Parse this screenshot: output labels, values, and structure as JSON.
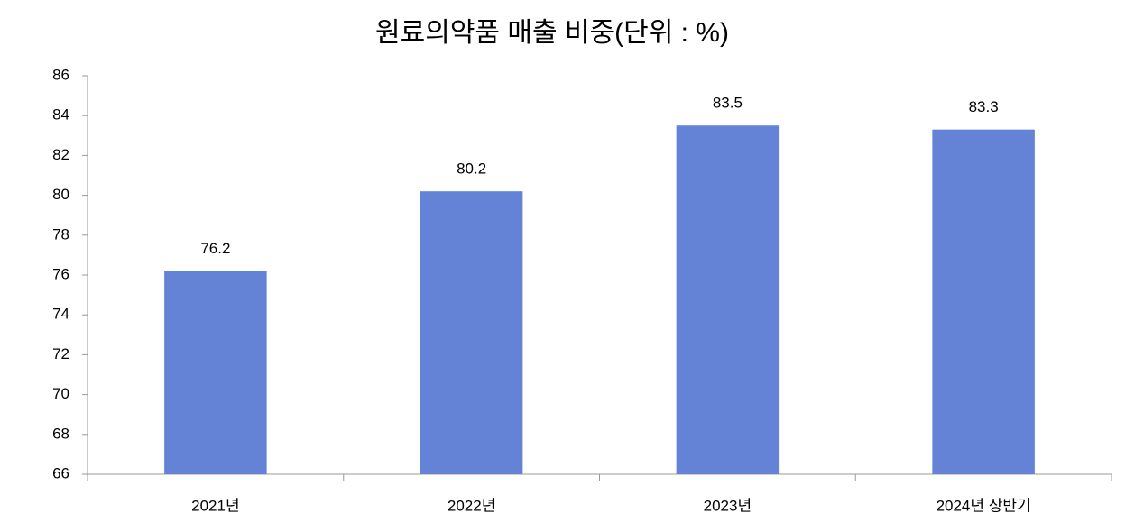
{
  "chart_data": {
    "type": "bar",
    "title": "원료의약품 매출 비중(단위 : %)",
    "categories": [
      "2021년",
      "2022년",
      "2023년",
      "2024년 상반기"
    ],
    "values": [
      76.2,
      80.2,
      83.5,
      83.3
    ],
    "color": "#6482d6",
    "ylim": [
      66,
      86
    ],
    "yticks": [
      66,
      68,
      70,
      72,
      74,
      76,
      78,
      80,
      82,
      84,
      86
    ],
    "grid": false
  }
}
